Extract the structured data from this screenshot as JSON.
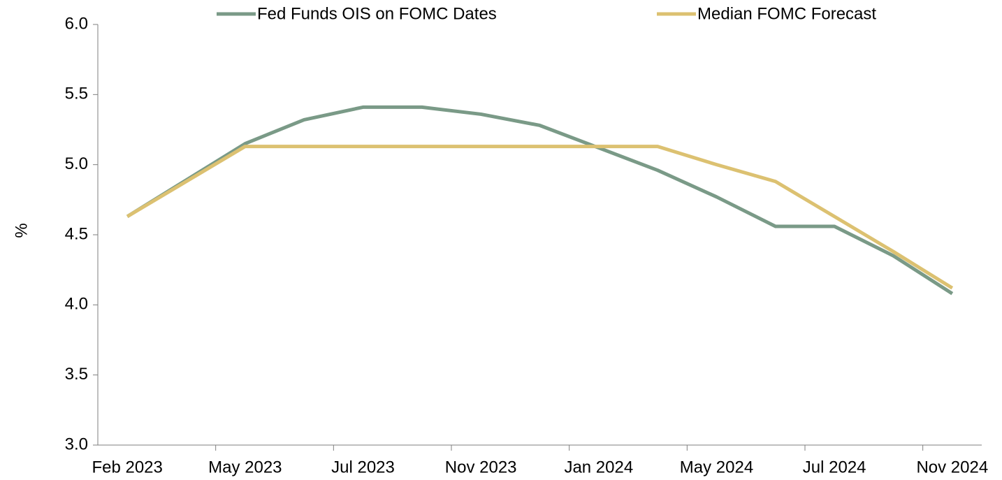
{
  "chart_data": {
    "type": "line",
    "y_label": "%",
    "categories": [
      "Feb 2023",
      null,
      "May 2023",
      null,
      "Jul 2023",
      null,
      "Nov 2023",
      null,
      "Jan 2024",
      null,
      "May 2024",
      null,
      "Jul 2024",
      null,
      "Nov 2024"
    ],
    "series": [
      {
        "name": "Fed Funds OIS on FOMC Dates",
        "color": "#7a9a87",
        "values": [
          4.63,
          4.89,
          5.15,
          5.32,
          5.41,
          5.41,
          5.36,
          5.28,
          5.12,
          4.96,
          4.77,
          4.56,
          4.56,
          4.35,
          4.08
        ]
      },
      {
        "name": "Median FOMC Forecast",
        "color": "#dcc171",
        "values": [
          4.63,
          4.88,
          5.13,
          5.13,
          5.13,
          5.13,
          5.13,
          5.13,
          5.13,
          5.13,
          5.0,
          4.88,
          4.63,
          4.38,
          4.12
        ]
      }
    ],
    "ylim": [
      3.0,
      6.0
    ],
    "yticks": [
      {
        "value": 3.0,
        "label": "3.0"
      },
      {
        "value": 3.5,
        "label": "3.5"
      },
      {
        "value": 4.0,
        "label": "4.0"
      },
      {
        "value": 4.5,
        "label": "4.5"
      },
      {
        "value": 5.0,
        "label": "5.0"
      },
      {
        "value": 5.5,
        "label": "5.5"
      },
      {
        "value": 6.0,
        "label": "6.0"
      }
    ],
    "legend": "top"
  }
}
